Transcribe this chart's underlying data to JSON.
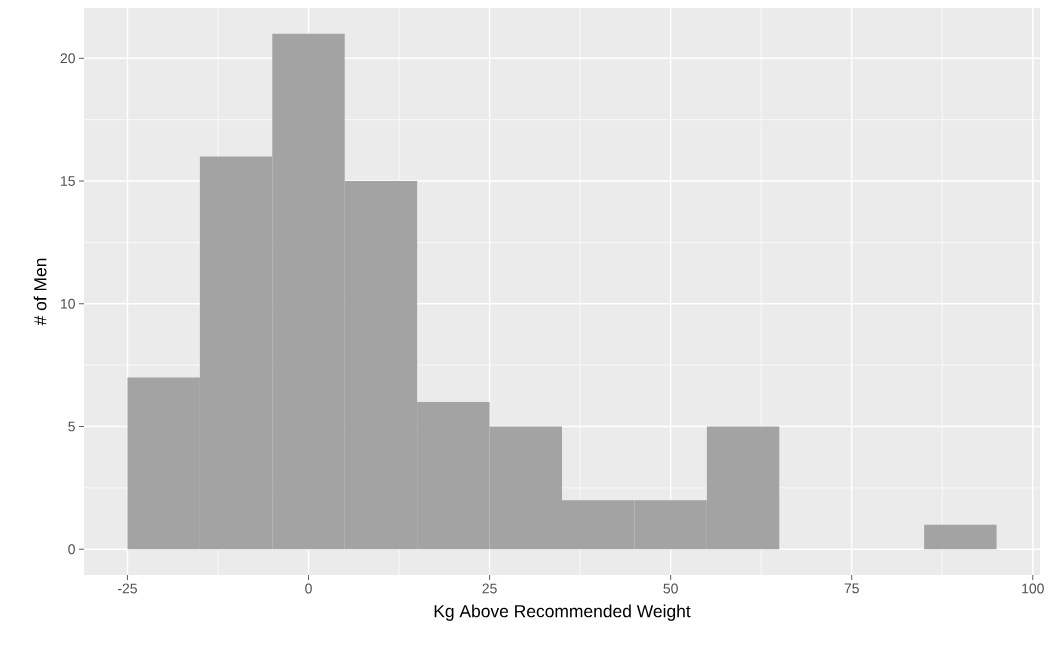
{
  "chart_data": {
    "type": "histogram",
    "xlabel": "Kg Above Recommended Weight",
    "ylabel": "# of Men",
    "bins": [
      -25,
      -15,
      -5,
      5,
      15,
      25,
      35,
      45,
      55,
      65,
      75,
      85,
      95
    ],
    "values": [
      7,
      16,
      21,
      15,
      6,
      5,
      2,
      2,
      5,
      0,
      0,
      1
    ],
    "color": "#a3a3a3",
    "xlim": [
      -31,
      101
    ],
    "ylim": [
      -1.05,
      22.05
    ],
    "xticks": [
      -25,
      0,
      25,
      50,
      75,
      100
    ],
    "yticks": [
      0,
      5,
      10,
      15,
      20
    ],
    "grid": true
  }
}
